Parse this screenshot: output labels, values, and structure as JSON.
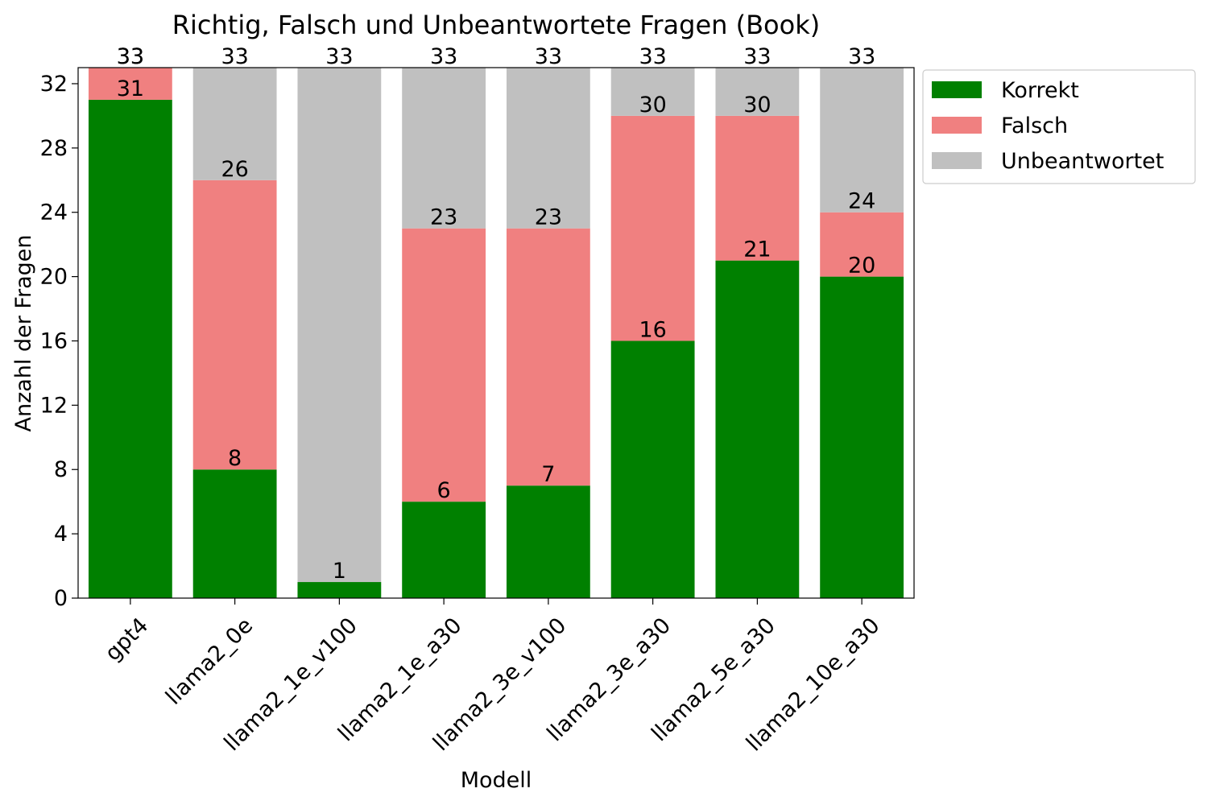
{
  "chart_data": {
    "type": "bar",
    "stacked": true,
    "title": "Richtig, Falsch und Unbeantwortete Fragen (Book)",
    "xlabel": "Modell",
    "ylabel": "Anzahl der Fragen",
    "categories": [
      "gpt4",
      "llama2_0e",
      "llama2_1e_v100",
      "llama2_1e_a30",
      "llama2_3e_v100",
      "llama2_3e_a30",
      "llama2_5e_a30",
      "llama2_10e_a30"
    ],
    "series": [
      {
        "name": "Korrekt",
        "color": "#008000",
        "values": [
          31,
          8,
          1,
          6,
          7,
          16,
          21,
          20
        ]
      },
      {
        "name": "Falsch",
        "color": "#f08080",
        "values": [
          2,
          18,
          0,
          17,
          16,
          14,
          9,
          4
        ]
      },
      {
        "name": "Unbeantwortet",
        "color": "#c0c0c0",
        "values": [
          0,
          7,
          32,
          10,
          10,
          3,
          3,
          9
        ]
      }
    ],
    "data_labels": {
      "korrekt_top": [
        "31",
        "8",
        "1",
        "6",
        "7",
        "16",
        "21",
        "20"
      ],
      "falsch_top": [
        "33",
        "26",
        "",
        "23",
        "23",
        "30",
        "30",
        "24"
      ],
      "total_top": [
        "33",
        "33",
        "33",
        "33",
        "33",
        "33",
        "33",
        "33"
      ]
    },
    "ylim": [
      0,
      33
    ],
    "yticks": [
      0,
      4,
      8,
      12,
      16,
      20,
      24,
      28,
      32
    ],
    "grid": false,
    "legend": "outside-right-top"
  }
}
